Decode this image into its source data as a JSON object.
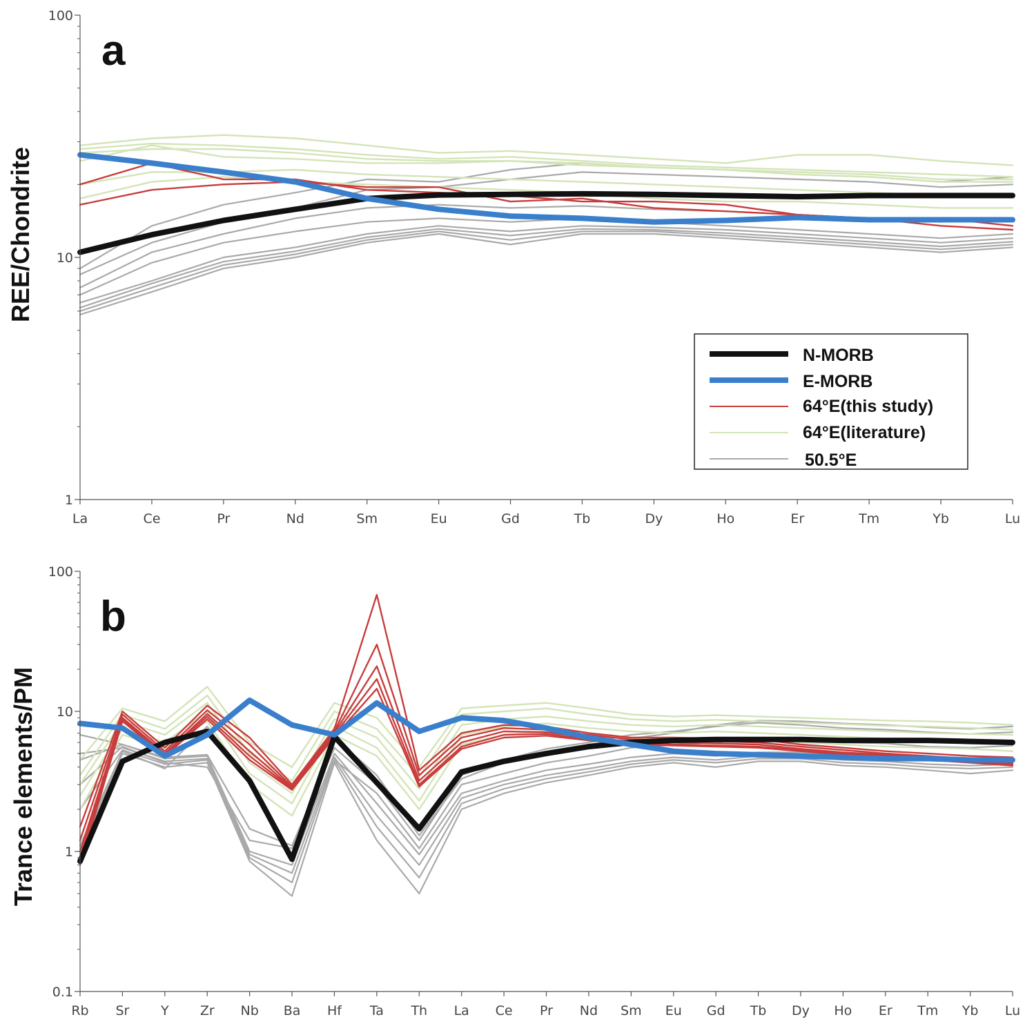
{
  "chart_data": [
    {
      "type": "line",
      "panel": "a",
      "scale": "log",
      "ylabel": "REE/Chondrite",
      "ylim": [
        1,
        100
      ],
      "y_ticks": [
        "1",
        "10",
        "100"
      ],
      "categories": [
        "La",
        "Ce",
        "Pr",
        "Nd",
        "Sm",
        "Eu",
        "Gd",
        "Tb",
        "Dy",
        "Ho",
        "Er",
        "Tm",
        "Yb",
        "Lu"
      ],
      "legend": {
        "placement": "lower-right",
        "entries": [
          {
            "label": "N-MORB",
            "color": "#111111"
          },
          {
            "label": "E-MORB",
            "color": "#3a7fcc"
          },
          {
            "label": "64°E(this study)",
            "color": "#c83c3c"
          },
          {
            "label": "64°E(literature)",
            "color": "#d3e4b7"
          },
          {
            "label": "50.5°E",
            "color": "#a9a9a9"
          }
        ]
      },
      "series": [
        {
          "name": "50.5°E",
          "color": "#a9a9a9",
          "values": [
            5.8,
            7.2,
            9.0,
            10.0,
            11.5,
            12.5,
            11.3,
            12.5,
            12.5,
            12.0,
            11.5,
            11.0,
            10.5,
            11.0
          ]
        },
        {
          "name": "50.5°E",
          "color": "#a9a9a9",
          "values": [
            6.0,
            7.5,
            9.3,
            10.3,
            11.8,
            12.8,
            11.8,
            12.8,
            12.8,
            12.3,
            11.8,
            11.3,
            10.8,
            11.3
          ]
        },
        {
          "name": "50.5°E",
          "color": "#a9a9a9",
          "values": [
            6.2,
            7.8,
            9.6,
            10.6,
            12.1,
            13.1,
            12.3,
            13.1,
            13.0,
            12.6,
            12.1,
            11.6,
            11.1,
            11.6
          ]
        },
        {
          "name": "50.5°E",
          "color": "#a9a9a9",
          "values": [
            6.5,
            8.0,
            10.0,
            11.0,
            12.5,
            13.5,
            12.8,
            13.5,
            13.3,
            13.0,
            12.5,
            12.0,
            11.5,
            12.0
          ]
        },
        {
          "name": "50.5°E",
          "color": "#a9a9a9",
          "values": [
            7.0,
            9.5,
            11.5,
            12.8,
            14.0,
            14.5,
            14.0,
            14.5,
            14.0,
            13.5,
            13.0,
            12.5,
            12.0,
            12.5
          ]
        },
        {
          "name": "50.5°E",
          "color": "#a9a9a9",
          "values": [
            7.5,
            10.5,
            12.5,
            14.5,
            16.0,
            16.5,
            16.0,
            16.3,
            15.8,
            15.5,
            15.0,
            14.5,
            14.0,
            14.5
          ]
        },
        {
          "name": "50.5°E",
          "color": "#a9a9a9",
          "values": [
            8.5,
            11.5,
            14.0,
            16.0,
            19.0,
            19.5,
            21.0,
            22.5,
            22.0,
            21.5,
            21.0,
            20.5,
            19.5,
            20.0
          ]
        },
        {
          "name": "50.5°E",
          "color": "#a9a9a9",
          "values": [
            9.0,
            13.5,
            16.5,
            18.5,
            21.0,
            20.5,
            23.0,
            24.5,
            23.5,
            23.0,
            22.0,
            21.5,
            20.5,
            21.5
          ]
        },
        {
          "name": "64°E(literature)",
          "color": "#d3e4b7",
          "values": [
            29.0,
            31.0,
            32.0,
            31.0,
            29.0,
            27.0,
            27.5,
            26.5,
            25.5,
            24.5,
            26.5,
            26.5,
            25.0,
            24.0
          ]
        },
        {
          "name": "64°E(literature)",
          "color": "#d3e4b7",
          "values": [
            28.0,
            29.5,
            29.0,
            28.0,
            26.5,
            25.5,
            26.0,
            25.0,
            24.0,
            23.5,
            23.0,
            22.5,
            22.0,
            21.5
          ]
        },
        {
          "name": "64°E(literature)",
          "color": "#d3e4b7",
          "values": [
            27.0,
            28.0,
            28.0,
            27.0,
            25.5,
            25.0,
            25.0,
            24.5,
            23.5,
            23.0,
            22.5,
            22.0,
            21.0,
            21.0
          ]
        },
        {
          "name": "64°E(literature)",
          "color": "#d3e4b7",
          "values": [
            25.0,
            29.0,
            26.0,
            25.5,
            24.5,
            24.5,
            25.0,
            24.0,
            23.5,
            23.0,
            22.0,
            21.5,
            20.5,
            20.5
          ]
        },
        {
          "name": "64°E(literature)",
          "color": "#d3e4b7",
          "values": [
            20.0,
            22.5,
            22.5,
            23.0,
            22.0,
            21.5,
            21.0,
            20.5,
            20.0,
            19.5,
            19.0,
            18.5,
            18.0,
            18.0
          ]
        },
        {
          "name": "64°E(literature)",
          "color": "#d3e4b7",
          "values": [
            17.5,
            20.5,
            21.5,
            20.5,
            20.0,
            19.5,
            19.0,
            18.5,
            17.5,
            17.0,
            17.0,
            16.5,
            16.0,
            16.0
          ]
        },
        {
          "name": "64°E(this study)",
          "color": "#c83c3c",
          "values": [
            20.0,
            24.5,
            21.0,
            21.0,
            19.0,
            18.5,
            18.0,
            17.0,
            17.0,
            16.5,
            15.0,
            14.5,
            14.5,
            13.5
          ]
        },
        {
          "name": "64°E(this study)",
          "color": "#c83c3c",
          "values": [
            16.5,
            19.0,
            20.0,
            20.5,
            19.5,
            19.5,
            17.0,
            17.5,
            16.0,
            15.5,
            15.0,
            14.5,
            13.5,
            13.0
          ]
        },
        {
          "name": "N-MORB",
          "color": "#111111",
          "values": [
            10.5,
            12.4,
            14.2,
            15.8,
            17.5,
            18.1,
            18.2,
            18.3,
            18.2,
            18.0,
            17.8,
            18.0,
            18.0,
            18.0
          ]
        },
        {
          "name": "E-MORB",
          "color": "#3a7fcc",
          "values": [
            26.5,
            24.5,
            22.5,
            20.5,
            17.5,
            15.8,
            14.8,
            14.5,
            14.0,
            14.2,
            14.6,
            14.3,
            14.3,
            14.3
          ]
        }
      ]
    },
    {
      "type": "line",
      "panel": "b",
      "scale": "log",
      "ylabel": "Trance elements/PM",
      "ylim": [
        0.1,
        100
      ],
      "y_ticks": [
        "0.1",
        "1",
        "10",
        "100"
      ],
      "categories": [
        "Rb",
        "Sr",
        "Y",
        "Zr",
        "Nb",
        "Ba",
        "Hf",
        "Ta",
        "Th",
        "La",
        "Ce",
        "Pr",
        "Nd",
        "Sm",
        "Eu",
        "Gd",
        "Tb",
        "Dy",
        "Ho",
        "Er",
        "Tm",
        "Yb",
        "Lu"
      ],
      "series": [
        {
          "name": "50.5°E",
          "color": "#a9a9a9",
          "values": [
            1.0,
            5.0,
            4.0,
            4.3,
            0.85,
            0.48,
            4.3,
            1.2,
            0.5,
            2.0,
            2.6,
            3.1,
            3.5,
            4.0,
            4.3,
            4.0,
            4.4,
            4.4,
            4.1,
            4.0,
            3.8,
            3.6,
            3.8
          ]
        },
        {
          "name": "50.5°E",
          "color": "#a9a9a9",
          "values": [
            2.0,
            5.3,
            4.2,
            4.5,
            0.9,
            0.6,
            4.5,
            1.5,
            0.65,
            2.2,
            2.8,
            3.3,
            3.7,
            4.2,
            4.5,
            4.3,
            4.6,
            4.6,
            4.3,
            4.2,
            4.0,
            3.9,
            4.0
          ]
        },
        {
          "name": "50.5°E",
          "color": "#a9a9a9",
          "values": [
            5.0,
            5.5,
            4.4,
            4.6,
            0.95,
            0.7,
            4.7,
            1.8,
            0.8,
            2.4,
            3.0,
            3.5,
            3.9,
            4.4,
            4.7,
            4.5,
            4.8,
            4.8,
            4.5,
            4.4,
            4.2,
            4.1,
            4.2
          ]
        },
        {
          "name": "50.5°E",
          "color": "#a9a9a9",
          "values": [
            6.8,
            5.8,
            4.6,
            4.8,
            1.0,
            0.8,
            5.0,
            2.2,
            0.95,
            2.6,
            3.2,
            3.8,
            4.2,
            4.7,
            5.0,
            4.8,
            5.1,
            5.1,
            4.8,
            4.7,
            4.5,
            4.4,
            4.5
          ]
        },
        {
          "name": "50.5°E",
          "color": "#a9a9a9",
          "values": [
            3.0,
            5.6,
            4.3,
            4.0,
            1.2,
            1.05,
            4.5,
            2.6,
            1.05,
            3.0,
            3.6,
            4.3,
            4.8,
            5.5,
            5.8,
            6.0,
            6.4,
            6.3,
            6.0,
            5.9,
            5.6,
            5.5,
            5.7
          ]
        },
        {
          "name": "50.5°E",
          "color": "#a9a9a9",
          "values": [
            4.5,
            5.8,
            4.7,
            4.9,
            1.45,
            1.1,
            5.5,
            3.0,
            1.2,
            3.5,
            4.5,
            5.4,
            6.0,
            6.8,
            7.2,
            7.8,
            8.3,
            8.0,
            7.6,
            7.4,
            7.1,
            6.9,
            7.1
          ]
        },
        {
          "name": "50.5°E",
          "color": "#a9a9a9",
          "values": [
            1.1,
            5.2,
            3.9,
            7.8,
            3.0,
            0.85,
            6.5,
            3.5,
            1.3,
            3.3,
            4.3,
            5.0,
            5.8,
            6.4,
            7.0,
            8.0,
            8.6,
            8.5,
            8.2,
            8.0,
            7.7,
            7.5,
            7.8
          ]
        },
        {
          "name": "64°E(literature)",
          "color": "#d3e4b7",
          "values": [
            4.5,
            10.5,
            8.5,
            15.0,
            6.0,
            4.0,
            11.5,
            9.0,
            4.0,
            10.5,
            11.0,
            11.5,
            10.5,
            9.5,
            9.2,
            9.4,
            9.2,
            9.0,
            8.8,
            8.6,
            8.5,
            8.3,
            8.0
          ]
        },
        {
          "name": "64°E(literature)",
          "color": "#d3e4b7",
          "values": [
            3.5,
            9.5,
            7.5,
            13.0,
            5.0,
            3.2,
            10.0,
            7.5,
            3.4,
            9.5,
            10.0,
            10.5,
            9.5,
            8.8,
            8.5,
            8.7,
            8.5,
            8.3,
            8.1,
            7.9,
            7.8,
            7.6,
            7.4
          ]
        },
        {
          "name": "64°E(literature)",
          "color": "#d3e4b7",
          "values": [
            3.0,
            8.5,
            6.8,
            11.5,
            4.3,
            2.6,
            8.8,
            6.5,
            2.8,
            8.0,
            8.8,
            9.2,
            8.5,
            8.0,
            7.8,
            8.0,
            7.8,
            7.6,
            7.4,
            7.2,
            7.0,
            6.9,
            6.8
          ]
        },
        {
          "name": "64°E(literature)",
          "color": "#d3e4b7",
          "values": [
            2.5,
            7.5,
            6.0,
            10.0,
            3.6,
            2.2,
            7.8,
            5.5,
            2.3,
            6.8,
            7.8,
            8.2,
            7.6,
            7.2,
            7.0,
            7.2,
            7.0,
            6.8,
            6.6,
            6.4,
            6.3,
            6.2,
            6.0
          ]
        },
        {
          "name": "64°E(literature)",
          "color": "#d3e4b7",
          "values": [
            2.0,
            6.8,
            5.5,
            8.5,
            3.0,
            1.8,
            6.8,
            4.8,
            2.0,
            5.8,
            6.8,
            7.2,
            6.8,
            6.4,
            6.2,
            6.3,
            6.2,
            6.0,
            5.8,
            5.6,
            5.5,
            5.4,
            5.2
          ]
        },
        {
          "name": "64°E(this study)",
          "color": "#c83c3c",
          "values": [
            1.5,
            10.0,
            5.5,
            11.0,
            6.5,
            3.0,
            7.5,
            68.0,
            3.8,
            7.0,
            8.0,
            7.8,
            7.0,
            6.5,
            6.5,
            6.4,
            6.3,
            5.8,
            5.5,
            5.2,
            5.0,
            4.8,
            4.7
          ]
        },
        {
          "name": "64°E(this study)",
          "color": "#c83c3c",
          "values": [
            1.2,
            9.5,
            5.2,
            10.2,
            5.8,
            2.9,
            7.2,
            30.0,
            3.5,
            6.5,
            7.6,
            7.4,
            6.8,
            6.3,
            6.2,
            6.1,
            6.0,
            5.6,
            5.3,
            5.0,
            4.8,
            4.6,
            4.5
          ]
        },
        {
          "name": "64°E(this study)",
          "color": "#c83c3c",
          "values": [
            1.0,
            9.0,
            5.0,
            9.6,
            5.2,
            2.85,
            7.0,
            21.0,
            3.2,
            6.0,
            7.2,
            7.1,
            6.5,
            6.1,
            6.0,
            5.9,
            5.8,
            5.4,
            5.1,
            4.9,
            4.7,
            4.5,
            4.3
          ]
        },
        {
          "name": "64°E(this study)",
          "color": "#c83c3c",
          "values": [
            0.9,
            8.8,
            4.9,
            9.2,
            4.8,
            2.8,
            6.8,
            17.0,
            3.0,
            5.6,
            6.8,
            6.9,
            6.3,
            5.9,
            5.8,
            5.7,
            5.6,
            5.3,
            5.0,
            4.8,
            4.6,
            4.4,
            4.2
          ]
        },
        {
          "name": "64°E(this study)",
          "color": "#c83c3c",
          "values": [
            0.8,
            8.5,
            4.8,
            8.8,
            4.5,
            2.75,
            6.6,
            14.5,
            2.9,
            5.4,
            6.5,
            6.7,
            6.2,
            5.8,
            5.7,
            5.6,
            5.5,
            5.2,
            4.9,
            4.7,
            4.5,
            4.3,
            4.1
          ]
        },
        {
          "name": "N-MORB",
          "color": "#111111",
          "values": [
            0.85,
            4.4,
            6.0,
            7.2,
            3.2,
            0.88,
            6.6,
            3.1,
            1.45,
            3.7,
            4.4,
            5.0,
            5.6,
            6.0,
            6.2,
            6.3,
            6.3,
            6.3,
            6.2,
            6.2,
            6.2,
            6.1,
            6.0
          ]
        },
        {
          "name": "E-MORB",
          "color": "#3a7fcc",
          "values": [
            8.2,
            7.6,
            4.8,
            6.8,
            12.0,
            8.0,
            6.8,
            11.5,
            7.2,
            9.0,
            8.6,
            7.6,
            6.5,
            5.8,
            5.2,
            5.0,
            4.9,
            4.8,
            4.7,
            4.6,
            4.6,
            4.5,
            4.5
          ]
        }
      ]
    }
  ],
  "panels": {
    "a": {
      "letter": "a",
      "ylabel": "REE/Chondrite"
    },
    "b": {
      "letter": "b",
      "ylabel": "Trance elements/PM"
    }
  }
}
